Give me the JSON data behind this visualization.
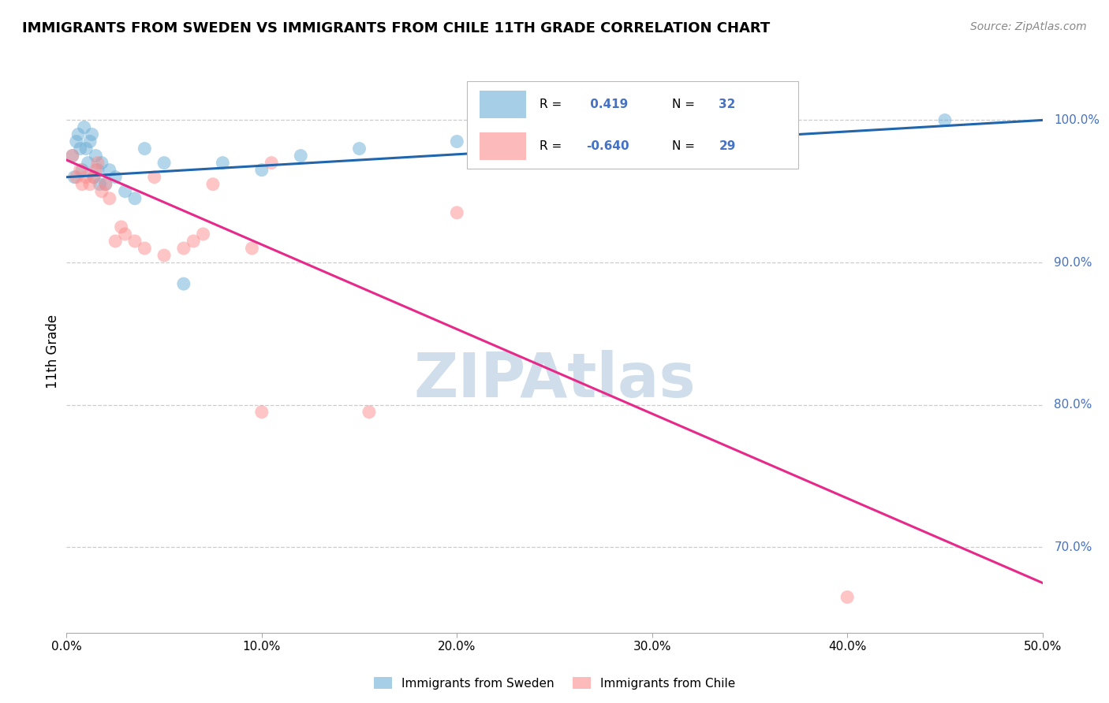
{
  "title": "IMMIGRANTS FROM SWEDEN VS IMMIGRANTS FROM CHILE 11TH GRADE CORRELATION CHART",
  "source": "Source: ZipAtlas.com",
  "ylabel": "11th Grade",
  "right_yticks": [
    100.0,
    90.0,
    80.0,
    70.0
  ],
  "xlim": [
    0.0,
    50.0
  ],
  "ylim": [
    64.0,
    103.5
  ],
  "sweden_R": 0.419,
  "sweden_N": 32,
  "chile_R": -0.64,
  "chile_N": 29,
  "sweden_color": "#6baed6",
  "chile_color": "#fc8d8d",
  "sweden_line_color": "#2166ac",
  "chile_line_color": "#e7298a",
  "watermark": "ZIPAtlas",
  "watermark_color": "#c8d8e8",
  "sweden_scatter_x": [
    0.3,
    0.4,
    0.5,
    0.6,
    0.7,
    0.8,
    0.9,
    1.0,
    1.1,
    1.2,
    1.3,
    1.4,
    1.5,
    1.6,
    1.7,
    1.8,
    2.0,
    2.2,
    2.5,
    3.0,
    3.5,
    4.0,
    5.0,
    6.0,
    8.0,
    10.0,
    12.0,
    15.0,
    20.0,
    25.0,
    32.0,
    45.0
  ],
  "sweden_scatter_y": [
    97.5,
    96.0,
    98.5,
    99.0,
    98.0,
    96.5,
    99.5,
    98.0,
    97.0,
    98.5,
    99.0,
    96.0,
    97.5,
    96.5,
    95.5,
    97.0,
    95.5,
    96.5,
    96.0,
    95.0,
    94.5,
    98.0,
    97.0,
    88.5,
    97.0,
    96.5,
    97.5,
    98.0,
    98.5,
    99.0,
    99.5,
    100.0
  ],
  "chile_scatter_x": [
    0.3,
    0.5,
    0.7,
    0.8,
    1.0,
    1.2,
    1.4,
    1.5,
    1.6,
    1.8,
    2.0,
    2.2,
    2.5,
    2.8,
    3.0,
    3.5,
    4.0,
    4.5,
    5.0,
    6.0,
    6.5,
    7.0,
    7.5,
    9.5,
    10.0,
    10.5,
    15.5,
    20.0,
    40.0
  ],
  "chile_scatter_y": [
    97.5,
    96.0,
    96.5,
    95.5,
    96.0,
    95.5,
    96.0,
    96.5,
    97.0,
    95.0,
    95.5,
    94.5,
    91.5,
    92.5,
    92.0,
    91.5,
    91.0,
    96.0,
    90.5,
    91.0,
    91.5,
    92.0,
    95.5,
    91.0,
    79.5,
    97.0,
    79.5,
    93.5,
    66.5
  ],
  "sweden_trend_x": [
    0.0,
    50.0
  ],
  "sweden_trend_y": [
    96.0,
    100.0
  ],
  "chile_trend_x": [
    0.0,
    50.0
  ],
  "chile_trend_y": [
    97.2,
    67.5
  ],
  "legend_sweden_label": "Immigrants from Sweden",
  "legend_chile_label": "Immigrants from Chile"
}
